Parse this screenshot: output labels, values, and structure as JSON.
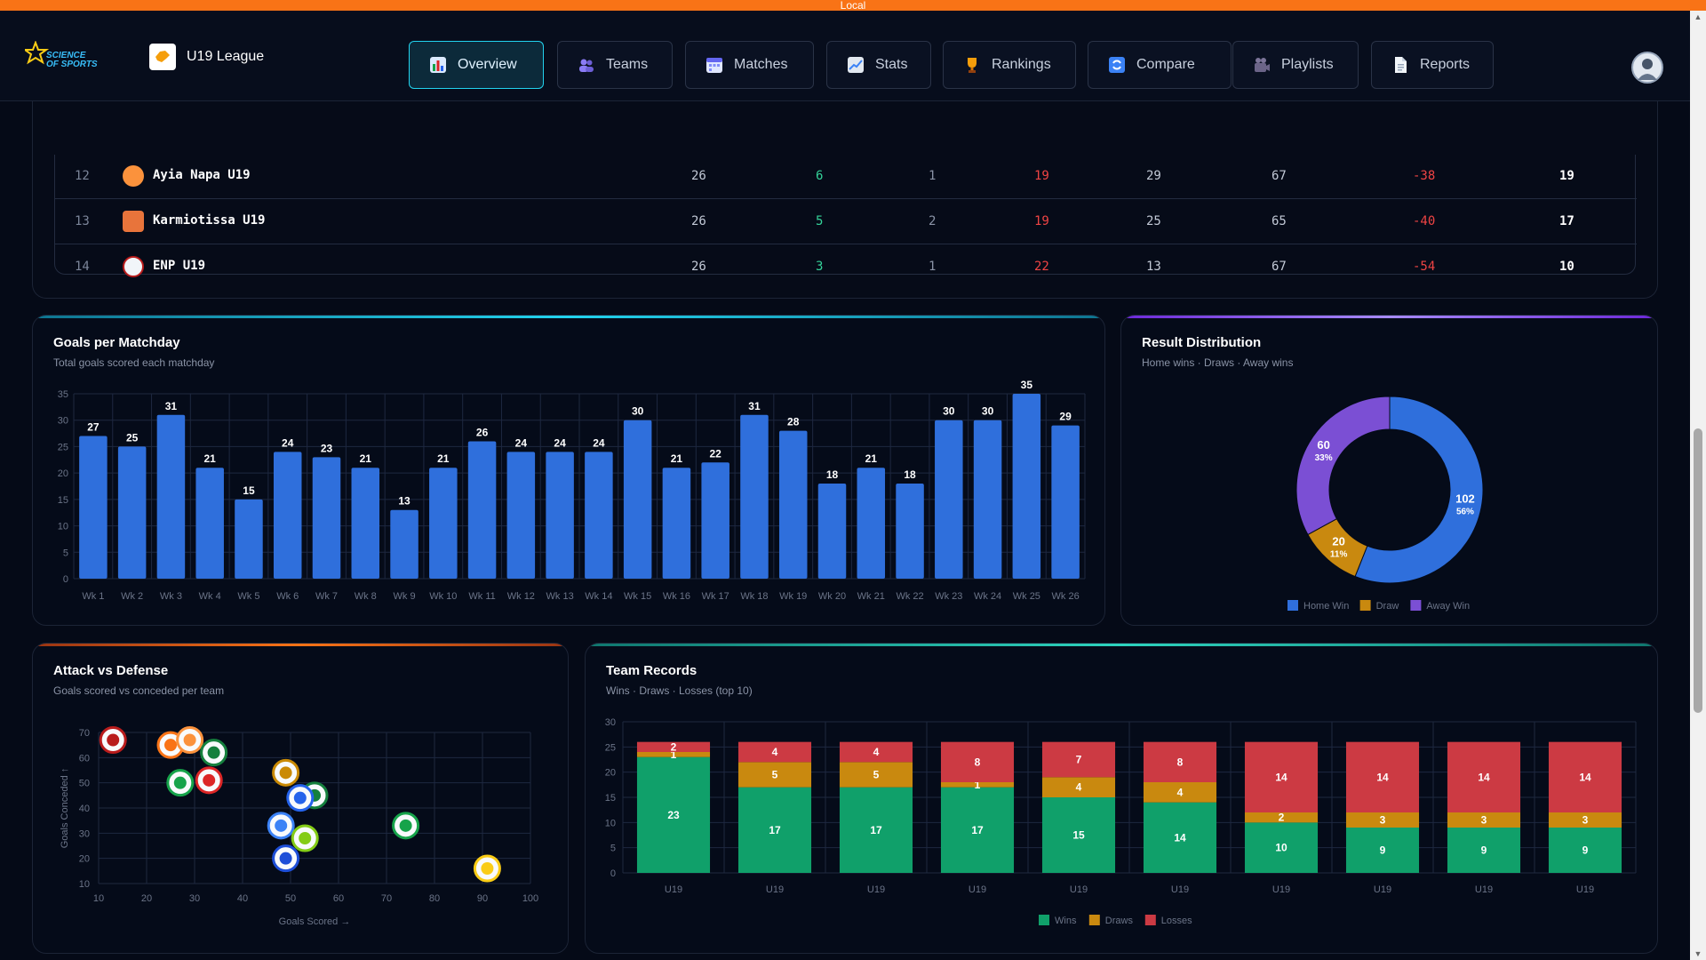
{
  "env_label": "Local",
  "header": {
    "logo_text_1": "SCIENCE",
    "logo_text_2": "OF SPORTS",
    "league_name": "U19 League",
    "nav": [
      {
        "label": "Overview",
        "icon": "chart-icon",
        "active": true
      },
      {
        "label": "Teams",
        "icon": "people-icon",
        "active": false
      },
      {
        "label": "Matches",
        "icon": "calendar-icon",
        "active": false
      },
      {
        "label": "Stats",
        "icon": "trend-icon",
        "active": false
      },
      {
        "label": "Rankings",
        "icon": "trophy-icon",
        "active": false
      },
      {
        "label": "Compare",
        "icon": "refresh-icon",
        "active": false
      },
      {
        "label": "Playlists",
        "icon": "film-icon",
        "active": false
      },
      {
        "label": "Reports",
        "icon": "document-icon",
        "active": false
      }
    ]
  },
  "standings": {
    "rows": [
      {
        "pos": "12",
        "team": "Ayia Napa U19",
        "played": "26",
        "wins": "6",
        "draws": "1",
        "losses": "19",
        "gf": "29",
        "ga": "67",
        "gd": "-38",
        "pts": "19"
      },
      {
        "pos": "13",
        "team": "Karmiotissa U19",
        "played": "26",
        "wins": "5",
        "draws": "2",
        "losses": "19",
        "gf": "25",
        "ga": "65",
        "gd": "-40",
        "pts": "17"
      },
      {
        "pos": "14",
        "team": "ENP U19",
        "played": "26",
        "wins": "3",
        "draws": "1",
        "losses": "22",
        "gf": "13",
        "ga": "67",
        "gd": "-54",
        "pts": "10"
      }
    ]
  },
  "goals_card": {
    "title": "Goals per Matchday",
    "subtitle": "Total goals scored each matchday"
  },
  "result_card": {
    "title": "Result Distribution",
    "subtitle": "Home wins · Draws · Away wins"
  },
  "attack_card": {
    "title": "Attack vs Defense",
    "subtitle": "Goals scored vs conceded per team"
  },
  "records_card": {
    "title": "Team Records",
    "subtitle": "Wins · Draws · Losses (top 10)"
  },
  "colors": {
    "accent": "#22d3ee",
    "bar": "#2f6fdc",
    "win": "#10a06a",
    "draw": "#c9890f",
    "loss": "#cc3a43",
    "away": "#7b4fd4",
    "positive": "#34d399",
    "negative": "#ef4444"
  },
  "chart_data": [
    {
      "type": "bar",
      "title": "Goals per Matchday",
      "categories": [
        "Wk 1",
        "Wk 2",
        "Wk 3",
        "Wk 4",
        "Wk 5",
        "Wk 6",
        "Wk 7",
        "Wk 8",
        "Wk 9",
        "Wk 10",
        "Wk 11",
        "Wk 12",
        "Wk 13",
        "Wk 14",
        "Wk 15",
        "Wk 16",
        "Wk 17",
        "Wk 18",
        "Wk 19",
        "Wk 20",
        "Wk 21",
        "Wk 22",
        "Wk 23",
        "Wk 24",
        "Wk 25",
        "Wk 26"
      ],
      "values": [
        27,
        25,
        31,
        21,
        15,
        24,
        23,
        21,
        13,
        21,
        26,
        24,
        24,
        24,
        30,
        21,
        22,
        31,
        28,
        18,
        21,
        18,
        30,
        30,
        35,
        29
      ],
      "value_labels": [
        "27",
        "25",
        "31",
        "21",
        "15",
        "24",
        "23",
        "21",
        "13",
        "21",
        "26",
        "24",
        "24",
        "24",
        "30",
        "21",
        "22",
        "31",
        "28",
        "18",
        "21",
        "18",
        "30",
        "30",
        "35",
        "29"
      ],
      "ylim": [
        0,
        35
      ],
      "yticks": [
        "0",
        "5",
        "10",
        "15",
        "20",
        "25",
        "30",
        "35"
      ],
      "grid": true
    },
    {
      "type": "pie",
      "title": "Result Distribution",
      "slices": [
        {
          "name": "Home Win",
          "value": 102,
          "label": "102",
          "pct": "56%"
        },
        {
          "name": "Draw",
          "value": 20,
          "label": "20",
          "pct": "11%"
        },
        {
          "name": "Away Win",
          "value": 60,
          "label": "60",
          "pct": "33%"
        }
      ],
      "legend": [
        "Home Win",
        "Draw",
        "Away Win"
      ]
    },
    {
      "type": "scatter",
      "title": "Attack vs Defense",
      "xlabel": "Goals Scored →",
      "ylabel": "Goals Conceded ↑",
      "xlim": [
        10,
        100
      ],
      "ylim": [
        10,
        70
      ],
      "xticks": [
        "10",
        "20",
        "30",
        "40",
        "50",
        "60",
        "70",
        "80",
        "90",
        "100"
      ],
      "yticks": [
        "10",
        "20",
        "30",
        "40",
        "50",
        "60",
        "70"
      ],
      "points": [
        {
          "x": 13,
          "y": 67,
          "color": "#b91c1c"
        },
        {
          "x": 25,
          "y": 65,
          "color": "#f97316"
        },
        {
          "x": 29,
          "y": 67,
          "color": "#fb923c"
        },
        {
          "x": 34,
          "y": 62,
          "color": "#15803d"
        },
        {
          "x": 27,
          "y": 50,
          "color": "#16a34a"
        },
        {
          "x": 33,
          "y": 51,
          "color": "#dc2626"
        },
        {
          "x": 49,
          "y": 54,
          "color": "#ca8a04"
        },
        {
          "x": 55,
          "y": 45,
          "color": "#15803d"
        },
        {
          "x": 52,
          "y": 44,
          "color": "#2563eb"
        },
        {
          "x": 48,
          "y": 33,
          "color": "#3b82f6"
        },
        {
          "x": 53,
          "y": 28,
          "color": "#84cc16"
        },
        {
          "x": 49,
          "y": 20,
          "color": "#1d4ed8"
        },
        {
          "x": 74,
          "y": 33,
          "color": "#16a34a"
        },
        {
          "x": 91,
          "y": 16,
          "color": "#facc15"
        }
      ]
    },
    {
      "type": "bar",
      "stacked": true,
      "title": "Team Records",
      "categories": [
        "U19",
        "U19",
        "U19",
        "U19",
        "U19",
        "U19",
        "U19",
        "U19",
        "U19",
        "U19"
      ],
      "ylim": [
        0,
        30
      ],
      "yticks": [
        "0",
        "5",
        "10",
        "15",
        "20",
        "25",
        "30"
      ],
      "series": [
        {
          "name": "Wins",
          "values": [
            23,
            17,
            17,
            17,
            15,
            14,
            10,
            9,
            9,
            9
          ]
        },
        {
          "name": "Draws",
          "values": [
            1,
            5,
            5,
            1,
            4,
            4,
            2,
            3,
            3,
            3
          ]
        },
        {
          "name": "Losses",
          "values": [
            2,
            4,
            4,
            8,
            7,
            8,
            14,
            14,
            14,
            14
          ]
        }
      ],
      "legend": [
        "Wins",
        "Draws",
        "Losses"
      ]
    }
  ]
}
